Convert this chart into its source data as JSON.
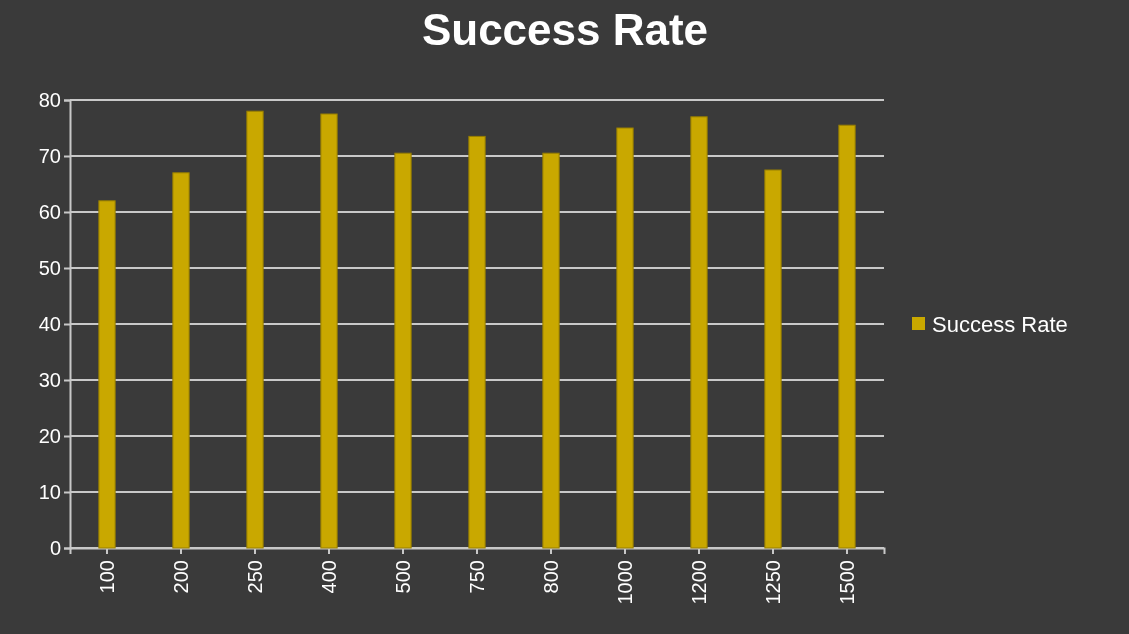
{
  "chart_data": {
    "type": "bar",
    "title": "Success Rate",
    "categories": [
      "100",
      "200",
      "250",
      "400",
      "500",
      "750",
      "800",
      "1000",
      "1200",
      "1250",
      "1500"
    ],
    "series": [
      {
        "name": "Success Rate",
        "color": "#c9a800",
        "values": [
          62,
          67,
          78,
          77.5,
          70.5,
          73.5,
          70.5,
          75,
          77,
          67.5,
          75.5
        ]
      }
    ],
    "ylim": [
      0,
      80
    ],
    "yticks": [
      0,
      10,
      20,
      30,
      40,
      50,
      60,
      70,
      80
    ],
    "grid": "y",
    "legend": "right"
  }
}
